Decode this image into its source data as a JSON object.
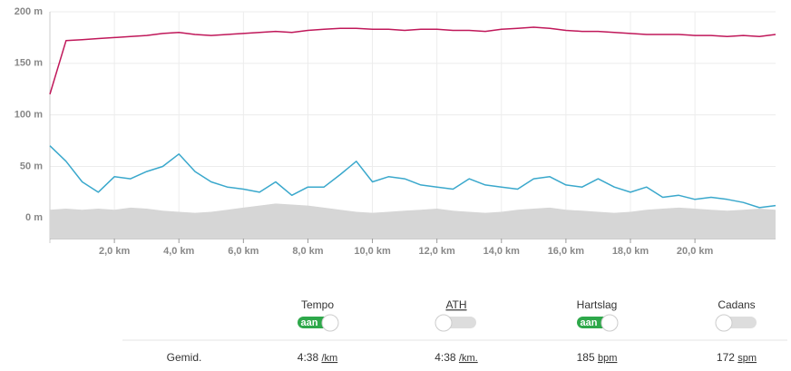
{
  "chart_data": {
    "type": "line",
    "x": [
      0,
      0.5,
      1,
      1.5,
      2,
      2.5,
      3,
      3.5,
      4,
      4.5,
      5,
      5.5,
      6,
      6.5,
      7,
      7.5,
      8,
      8.5,
      9,
      9.5,
      10,
      10.5,
      11,
      11.5,
      12,
      12.5,
      13,
      13.5,
      14,
      14.5,
      15,
      15.5,
      16,
      16.5,
      17,
      17.5,
      18,
      18.5,
      19,
      19.5,
      20,
      20.5,
      21,
      21.5,
      22,
      22.5
    ],
    "series": [
      {
        "style": "area",
        "color": "#d6d6d6",
        "values": [
          8,
          9,
          8,
          9,
          8,
          10,
          9,
          7,
          6,
          5,
          6,
          8,
          10,
          12,
          14,
          13,
          12,
          10,
          8,
          6,
          5,
          6,
          7,
          8,
          9,
          7,
          6,
          5,
          6,
          8,
          9,
          10,
          8,
          7,
          6,
          5,
          6,
          8,
          9,
          10,
          9,
          8,
          7,
          8,
          9,
          8
        ]
      },
      {
        "style": "line",
        "color": "#3aa8cc",
        "values": [
          70,
          55,
          35,
          25,
          40,
          38,
          45,
          50,
          62,
          45,
          35,
          30,
          28,
          25,
          35,
          22,
          30,
          30,
          42,
          55,
          35,
          40,
          38,
          32,
          30,
          28,
          38,
          32,
          30,
          28,
          38,
          40,
          32,
          30,
          38,
          30,
          25,
          30,
          20,
          22,
          18,
          20,
          18,
          15,
          10,
          12
        ]
      },
      {
        "style": "line",
        "color": "#c0185a",
        "values": [
          120,
          172,
          173,
          174,
          175,
          176,
          177,
          179,
          180,
          178,
          177,
          178,
          179,
          180,
          181,
          180,
          182,
          183,
          184,
          184,
          183,
          183,
          182,
          183,
          183,
          182,
          182,
          181,
          183,
          184,
          185,
          184,
          182,
          181,
          181,
          180,
          179,
          178,
          178,
          178,
          177,
          177,
          176,
          177,
          176,
          178
        ]
      }
    ],
    "xlim": [
      0,
      22.5
    ],
    "xticks": [
      {
        "value": 2,
        "label": "2,0 km"
      },
      {
        "value": 4,
        "label": "4,0 km"
      },
      {
        "value": 6,
        "label": "6,0 km"
      },
      {
        "value": 8,
        "label": "8,0 km"
      },
      {
        "value": 10,
        "label": "10,0 km"
      },
      {
        "value": 12,
        "label": "12,0 km"
      },
      {
        "value": 14,
        "label": "14,0 km"
      },
      {
        "value": 16,
        "label": "16,0 km"
      },
      {
        "value": 18,
        "label": "18,0 km"
      },
      {
        "value": 20,
        "label": "20,0 km"
      }
    ],
    "ylim": [
      -20,
      200
    ],
    "yticks": [
      {
        "value": 0,
        "label": "0 m"
      },
      {
        "value": 50,
        "label": "50 m"
      },
      {
        "value": 100,
        "label": "100 m"
      },
      {
        "value": 150,
        "label": "150 m"
      },
      {
        "value": 200,
        "label": "200 m"
      }
    ],
    "grid": true
  },
  "controls": {
    "toggles": [
      {
        "label": "Tempo",
        "state": "aan"
      },
      {
        "label": "ATH"
      },
      {
        "label": "Hartslag",
        "state": "aan"
      },
      {
        "label": "Cadans"
      }
    ],
    "summary": {
      "label": "Gemid.",
      "cells": [
        {
          "value": "4:38",
          "unit": "/km"
        },
        {
          "value": "4:38",
          "unit": "/km."
        },
        {
          "value": "185",
          "unit": "bpm"
        },
        {
          "value": "172",
          "unit": "spm"
        }
      ]
    }
  }
}
